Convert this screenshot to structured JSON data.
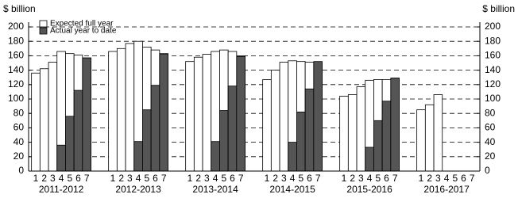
{
  "chart_data": {
    "type": "grouped-bar",
    "ylabel": "$ billion",
    "y2label": "$ billion",
    "groups": [
      "2011-2012",
      "2012-2013",
      "2013-2014",
      "2014-2015",
      "2015-2016",
      "2016-2017"
    ],
    "categories": [
      "1",
      "2",
      "3",
      "4",
      "5",
      "6",
      "7"
    ],
    "series": [
      {
        "name": "Expected full year",
        "color": "#ffffff",
        "values": [
          [
            136,
            142,
            151,
            166,
            163,
            161,
            157
          ],
          [
            166,
            170,
            177,
            180,
            172,
            168,
            163
          ],
          [
            152,
            158,
            162,
            166,
            168,
            166,
            160
          ],
          [
            127,
            140,
            151,
            153,
            152,
            151,
            150
          ],
          [
            104,
            106,
            117,
            126,
            127,
            127,
            129
          ],
          [
            85,
            92,
            106,
            null,
            null,
            null,
            null
          ]
        ]
      },
      {
        "name": "Actual year to date",
        "color": "#555555",
        "values": [
          [
            null,
            null,
            null,
            36,
            76,
            112,
            157
          ],
          [
            null,
            null,
            null,
            41,
            85,
            119,
            162
          ],
          [
            null,
            null,
            null,
            41,
            84,
            118,
            159
          ],
          [
            null,
            null,
            null,
            40,
            82,
            114,
            152
          ],
          [
            null,
            null,
            null,
            33,
            70,
            97,
            129
          ],
          [
            null,
            null,
            null,
            null,
            null,
            null,
            null
          ]
        ]
      }
    ],
    "ylim": [
      0,
      200
    ],
    "yticks": [
      0,
      20,
      40,
      60,
      80,
      100,
      120,
      140,
      160,
      180,
      200
    ],
    "y2lim": [
      0,
      200
    ],
    "y2ticks": [
      0,
      20,
      40,
      60,
      80,
      100,
      120,
      140,
      160,
      180,
      200
    ],
    "grid": true,
    "legend": "top-left"
  }
}
